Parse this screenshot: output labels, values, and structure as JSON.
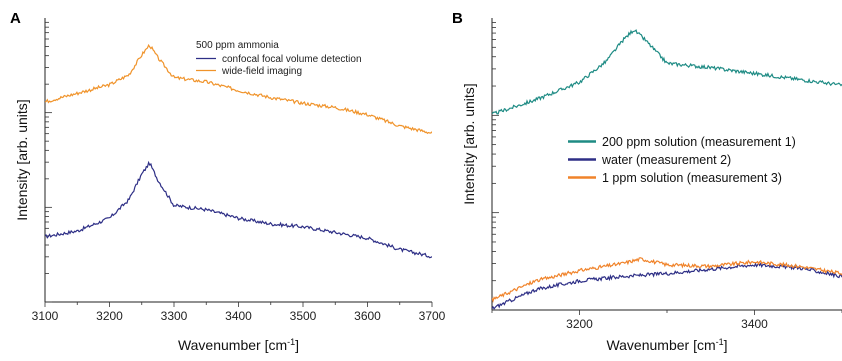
{
  "chart_data": [
    {
      "panel": "A",
      "type": "line",
      "xlabel": "Wavenumber [cm",
      "xlabel_sup": "-1",
      "xlabel_close": "]",
      "ylabel": "Intensity [arb. units]",
      "xlim": [
        3100,
        3700
      ],
      "ylim": [
        0,
        10
      ],
      "x_ticks": [
        3100,
        3200,
        3300,
        3400,
        3500,
        3600,
        3700
      ],
      "y_scale": "log",
      "grid": false,
      "legend_title": "500 ppm ammonia",
      "legend_position": "top-right",
      "series": [
        {
          "name": "confocal focal volume detection",
          "color": "#2e2f86",
          "x": [
            3100,
            3150,
            3200,
            3230,
            3250,
            3262,
            3275,
            3300,
            3350,
            3400,
            3450,
            3500,
            3550,
            3600,
            3650,
            3700
          ],
          "y": [
            2.3,
            2.5,
            2.95,
            3.6,
            4.5,
            4.9,
            4.3,
            3.4,
            3.25,
            2.95,
            2.75,
            2.65,
            2.45,
            2.25,
            1.85,
            1.6
          ]
        },
        {
          "name": "wide-field imaging",
          "color": "#f0932a",
          "x": [
            3100,
            3150,
            3200,
            3230,
            3250,
            3262,
            3275,
            3300,
            3350,
            3400,
            3450,
            3500,
            3550,
            3600,
            3650,
            3700
          ],
          "y": [
            7.05,
            7.35,
            7.65,
            8.0,
            8.7,
            9.05,
            8.6,
            7.9,
            7.75,
            7.45,
            7.2,
            7.0,
            6.85,
            6.6,
            6.2,
            5.95
          ]
        }
      ]
    },
    {
      "panel": "B",
      "type": "line",
      "xlabel": "Wavenumber [cm",
      "xlabel_sup": "-1",
      "xlabel_close": "]",
      "ylabel": "Intensity [arb. units]",
      "xlim": [
        3100,
        3500
      ],
      "ylim": [
        0,
        10
      ],
      "x_ticks": [
        3200,
        3400
      ],
      "y_scale": "log",
      "grid": false,
      "legend_position": "center-right",
      "series": [
        {
          "name": "200 ppm solution (measurement 1)",
          "color": "#1e8b84",
          "x": [
            3100,
            3150,
            3200,
            3230,
            3250,
            3262,
            3275,
            3300,
            3350,
            3400,
            3450,
            3500
          ],
          "y": [
            6.7,
            7.2,
            7.8,
            8.5,
            9.25,
            9.6,
            9.25,
            8.45,
            8.3,
            8.1,
            7.9,
            7.7
          ]
        },
        {
          "name": "water (measurement 2)",
          "color": "#2e2f86",
          "x": [
            3100,
            3150,
            3200,
            3250,
            3300,
            3350,
            3400,
            3450,
            3500
          ],
          "y": [
            0.05,
            0.7,
            1.0,
            1.15,
            1.25,
            1.4,
            1.55,
            1.45,
            1.15
          ]
        },
        {
          "name": "1 ppm solution (measurement 3)",
          "color": "#f0832a",
          "x": [
            3100,
            3150,
            3200,
            3250,
            3270,
            3300,
            3350,
            3400,
            3450,
            3500
          ],
          "y": [
            0.35,
            1.0,
            1.35,
            1.6,
            1.75,
            1.55,
            1.5,
            1.65,
            1.5,
            1.25
          ]
        }
      ]
    }
  ]
}
